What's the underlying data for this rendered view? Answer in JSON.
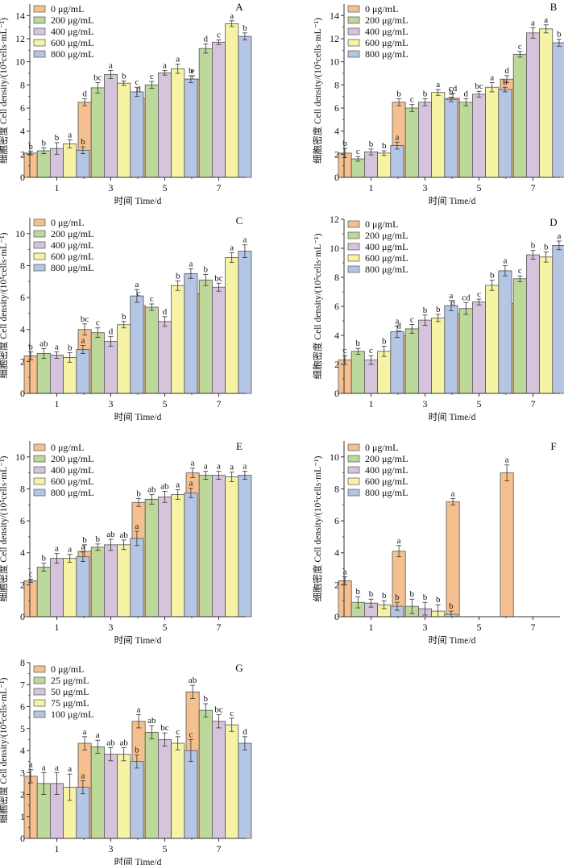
{
  "chart_data": [
    {
      "type": "bar",
      "panel": "A",
      "categories": [
        "1",
        "3",
        "5",
        "7"
      ],
      "xlabel": "时间 Time/d",
      "ylabel": "细胞密度 Cell density/(10⁵cells·mL⁻¹)",
      "ylim": [
        0,
        15
      ],
      "yticks": [
        0,
        2,
        4,
        6,
        8,
        10,
        12,
        14
      ],
      "legend_position": "top-left",
      "series": [
        {
          "name": "0 μg/mL",
          "color": "#f5c08f",
          "values": [
            2.1,
            6.5,
            6.8,
            8.5
          ],
          "errors": [
            0.15,
            0.3,
            0.4,
            0.3
          ],
          "letters": [
            "b",
            "d",
            "d",
            "e"
          ]
        },
        {
          "name": "200 μg/mL",
          "color": "#bcd89a",
          "values": [
            2.3,
            7.75,
            8.0,
            11.15
          ],
          "errors": [
            0.25,
            0.45,
            0.3,
            0.4
          ],
          "letters": [
            "b",
            "bc",
            "c",
            "d"
          ]
        },
        {
          "name": "400 μg/mL",
          "color": "#d6c4dc",
          "values": [
            2.5,
            8.9,
            9.05,
            11.7
          ],
          "errors": [
            0.5,
            0.35,
            0.2,
            0.2
          ],
          "letters": [
            "b",
            "a",
            "a",
            "c"
          ]
        },
        {
          "name": "600 μg/mL",
          "color": "#f7f3a5",
          "values": [
            2.9,
            8.15,
            9.4,
            13.3
          ],
          "errors": [
            0.35,
            0.2,
            0.4,
            0.25
          ],
          "letters": [
            "a",
            "b",
            "a",
            "a"
          ]
        },
        {
          "name": "800 μg/mL",
          "color": "#b4c6e4",
          "values": [
            2.35,
            7.4,
            8.5,
            12.2
          ],
          "errors": [
            0.3,
            0.4,
            0.3,
            0.3
          ],
          "letters": [
            "b",
            "c",
            "b",
            "b"
          ]
        }
      ]
    },
    {
      "type": "bar",
      "panel": "B",
      "categories": [
        "1",
        "3",
        "5",
        "7"
      ],
      "xlabel": "时间 Time/d",
      "ylabel": "细胞密度 Cell density/(10⁵cells·mL⁻¹)",
      "ylim": [
        0,
        15
      ],
      "yticks": [
        0,
        2,
        4,
        6,
        8,
        10,
        12,
        14
      ],
      "legend_position": "top-left",
      "series": [
        {
          "name": "0 μg/mL",
          "color": "#f5c08f",
          "values": [
            2.1,
            6.5,
            6.85,
            8.5
          ],
          "errors": [
            0.4,
            0.3,
            0.4,
            0.3
          ],
          "letters": [
            "b",
            "b",
            "cd",
            "d"
          ]
        },
        {
          "name": "200 μg/mL",
          "color": "#bcd89a",
          "values": [
            1.6,
            6.0,
            6.5,
            10.65
          ],
          "errors": [
            0.2,
            0.3,
            0.3,
            0.25
          ],
          "letters": [
            "c",
            "c",
            "d",
            "c"
          ]
        },
        {
          "name": "400 μg/mL",
          "color": "#d6c4dc",
          "values": [
            2.2,
            6.5,
            7.2,
            12.5
          ],
          "errors": [
            0.25,
            0.3,
            0.25,
            0.45
          ],
          "letters": [
            "b",
            "b",
            "bc",
            "a"
          ]
        },
        {
          "name": "600 μg/mL",
          "color": "#f7f3a5",
          "values": [
            2.1,
            7.35,
            7.8,
            12.85
          ],
          "errors": [
            0.2,
            0.25,
            0.4,
            0.35
          ],
          "letters": [
            "b",
            "a",
            "a",
            "a"
          ]
        },
        {
          "name": "800 μg/mL",
          "color": "#b4c6e4",
          "values": [
            2.75,
            6.75,
            7.6,
            11.65
          ],
          "errors": [
            0.3,
            0.2,
            0.2,
            0.3
          ],
          "letters": [
            "a",
            "b",
            "b",
            "b"
          ]
        }
      ]
    },
    {
      "type": "bar",
      "panel": "C",
      "categories": [
        "1",
        "3",
        "5",
        "7"
      ],
      "xlabel": "时间 Time/d",
      "ylabel": "细胞密度 Cell density/(10⁵cells·mL⁻¹)",
      "ylim": [
        0,
        11
      ],
      "yticks": [
        0,
        2,
        4,
        6,
        8,
        10
      ],
      "legend_position": "top-left",
      "series": [
        {
          "name": "0 μg/mL",
          "color": "#f5c08f",
          "values": [
            2.35,
            4.0,
            5.5,
            6.25
          ],
          "errors": [
            0.25,
            0.35,
            0.45,
            0.2
          ],
          "letters": [
            "b",
            "bc",
            "c",
            "c"
          ]
        },
        {
          "name": "200 μg/mL",
          "color": "#bcd89a",
          "values": [
            2.5,
            3.8,
            5.4,
            7.1
          ],
          "errors": [
            0.3,
            0.3,
            0.2,
            0.35
          ],
          "letters": [
            "ab",
            "c",
            "c",
            "b"
          ]
        },
        {
          "name": "400 μg/mL",
          "color": "#d6c4dc",
          "values": [
            2.4,
            3.25,
            4.5,
            6.65
          ],
          "errors": [
            0.2,
            0.3,
            0.3,
            0.25
          ],
          "letters": [
            "a",
            "d",
            "d",
            "bc"
          ]
        },
        {
          "name": "600 μg/mL",
          "color": "#f7f3a5",
          "values": [
            2.25,
            4.3,
            6.75,
            8.5
          ],
          "errors": [
            0.3,
            0.2,
            0.3,
            0.3
          ],
          "letters": [
            "b",
            "b",
            "b",
            "a"
          ]
        },
        {
          "name": "800 μg/mL",
          "color": "#b4c6e4",
          "values": [
            2.75,
            6.1,
            7.5,
            8.9
          ],
          "errors": [
            0.25,
            0.4,
            0.3,
            0.4
          ],
          "letters": [
            "a",
            "a",
            "a",
            "a"
          ]
        }
      ]
    },
    {
      "type": "bar",
      "panel": "D",
      "categories": [
        "1",
        "3",
        "5",
        "7"
      ],
      "xlabel": "时间 Time/d",
      "ylabel": "细胞密度 Cell density/(10⁵cells·mL⁻¹)",
      "ylim": [
        0,
        12
      ],
      "yticks": [
        0,
        2,
        4,
        6,
        8,
        10,
        12
      ],
      "legend_position": "top-left",
      "series": [
        {
          "name": "0 μg/mL",
          "color": "#f5c08f",
          "values": [
            2.3,
            4.0,
            5.5,
            6.2
          ],
          "errors": [
            0.3,
            0.3,
            0.4,
            0.3
          ],
          "letters": [
            "c",
            "d",
            "d",
            "d"
          ]
        },
        {
          "name": "200 μg/mL",
          "color": "#bcd89a",
          "values": [
            2.9,
            4.45,
            5.85,
            7.9
          ],
          "errors": [
            0.2,
            0.3,
            0.4,
            0.2
          ],
          "letters": [
            "b",
            "c",
            "cd",
            "c"
          ]
        },
        {
          "name": "400 μg/mL",
          "color": "#d6c4dc",
          "values": [
            2.3,
            5.05,
            6.3,
            9.55
          ],
          "errors": [
            0.3,
            0.35,
            0.2,
            0.3
          ],
          "letters": [
            "c",
            "b",
            "c",
            "b"
          ]
        },
        {
          "name": "600 μg/mL",
          "color": "#f7f3a5",
          "values": [
            2.9,
            5.2,
            7.45,
            9.4
          ],
          "errors": [
            0.35,
            0.25,
            0.35,
            0.35
          ],
          "letters": [
            "b",
            "b",
            "b",
            "b"
          ]
        },
        {
          "name": "800 μg/mL",
          "color": "#b4c6e4",
          "values": [
            4.25,
            6.05,
            8.45,
            10.2
          ],
          "errors": [
            0.4,
            0.35,
            0.35,
            0.3
          ],
          "letters": [
            "a",
            "a",
            "a",
            "a"
          ]
        }
      ]
    },
    {
      "type": "bar",
      "panel": "E",
      "categories": [
        "1",
        "3",
        "5",
        "7"
      ],
      "xlabel": "时间 Time/d",
      "ylabel": "细胞密度 Cell density/(10⁵cells·mL⁻¹)",
      "ylim": [
        0,
        11
      ],
      "yticks": [
        0,
        2,
        4,
        6,
        8,
        10
      ],
      "legend_position": "top-left",
      "series": [
        {
          "name": "0 μg/mL",
          "color": "#f5c08f",
          "values": [
            2.25,
            4.1,
            7.15,
            9.0
          ],
          "errors": [
            0.1,
            0.4,
            0.25,
            0.3
          ],
          "letters": [
            "c",
            "b",
            "b",
            "a"
          ]
        },
        {
          "name": "200 μg/mL",
          "color": "#bcd89a",
          "values": [
            3.1,
            4.35,
            7.35,
            8.85
          ],
          "errors": [
            0.25,
            0.2,
            0.3,
            0.25
          ],
          "letters": [
            "b",
            "b",
            "ab",
            "a"
          ]
        },
        {
          "name": "400 μg/mL",
          "color": "#d6c4dc",
          "values": [
            3.65,
            4.5,
            7.5,
            8.85
          ],
          "errors": [
            0.3,
            0.35,
            0.35,
            0.25
          ],
          "letters": [
            "a",
            "ab",
            "ab",
            "a"
          ]
        },
        {
          "name": "600 μg/mL",
          "color": "#f7f3a5",
          "values": [
            3.65,
            4.5,
            7.65,
            8.75
          ],
          "errors": [
            0.25,
            0.3,
            0.3,
            0.3
          ],
          "letters": [
            "a",
            "ab",
            "a",
            "a"
          ]
        },
        {
          "name": "800 μg/mL",
          "color": "#b4c6e4",
          "values": [
            3.75,
            4.9,
            7.75,
            8.85
          ],
          "errors": [
            0.3,
            0.45,
            0.3,
            0.25
          ],
          "letters": [
            "a",
            "a",
            "a",
            "a"
          ]
        }
      ]
    },
    {
      "type": "bar",
      "panel": "F",
      "categories": [
        "1",
        "3",
        "5",
        "7"
      ],
      "xlabel": "时间 Time/d",
      "ylabel": "细胞密度 Cell density/(10⁵cells·mL⁻¹)",
      "ylim": [
        0,
        11
      ],
      "yticks": [
        0,
        2,
        4,
        6,
        8,
        10
      ],
      "legend_position": "top-left",
      "series": [
        {
          "name": "0 μg/mL",
          "color": "#f5c08f",
          "values": [
            2.25,
            4.1,
            7.2,
            9.0
          ],
          "errors": [
            0.25,
            0.35,
            0.2,
            0.5
          ],
          "letters": [
            "a",
            "a",
            "a",
            "a"
          ]
        },
        {
          "name": "200 μg/mL",
          "color": "#bcd89a",
          "values": [
            0.9,
            0.65,
            0,
            0
          ],
          "errors": [
            0.35,
            0.45,
            0,
            0
          ],
          "letters": [
            "b",
            "b",
            "",
            ""
          ]
        },
        {
          "name": "400 μg/mL",
          "color": "#d6c4dc",
          "values": [
            0.85,
            0.5,
            0,
            0
          ],
          "errors": [
            0.25,
            0.4,
            0,
            0
          ],
          "letters": [
            "b",
            "b",
            "",
            ""
          ]
        },
        {
          "name": "600 μg/mL",
          "color": "#f7f3a5",
          "values": [
            0.75,
            0.35,
            0,
            0
          ],
          "errors": [
            0.25,
            0.4,
            0,
            0
          ],
          "letters": [
            "b",
            "b",
            "",
            ""
          ]
        },
        {
          "name": "800 μg/mL",
          "color": "#b4c6e4",
          "values": [
            0.65,
            0.15,
            0,
            0
          ],
          "errors": [
            0.25,
            0.2,
            0,
            0
          ],
          "letters": [
            "b",
            "b",
            "",
            ""
          ]
        }
      ]
    },
    {
      "type": "bar",
      "panel": "G",
      "categories": [
        "1",
        "3",
        "5",
        "7"
      ],
      "xlabel": "时间 Time/d",
      "ylabel": "细胞密度 Cell density/(10⁵cells·mL⁻¹)",
      "ylim": [
        0,
        8
      ],
      "yticks": [
        0,
        1,
        2,
        3,
        4,
        5,
        6,
        7,
        8
      ],
      "legend_position": "top-left",
      "series": [
        {
          "name": "0 μg/mL",
          "color": "#f5c08f",
          "values": [
            2.83,
            4.33,
            5.33,
            6.67
          ],
          "errors": [
            0.3,
            0.3,
            0.3,
            0.3
          ],
          "letters": [
            "a",
            "a",
            "a",
            "ab"
          ]
        },
        {
          "name": "25 μg/mL",
          "color": "#bcd89a",
          "values": [
            2.5,
            4.17,
            4.83,
            5.83
          ],
          "errors": [
            0.5,
            0.3,
            0.3,
            0.3
          ],
          "letters": [
            "a",
            "a",
            "ab",
            "b"
          ]
        },
        {
          "name": "50 μg/mL",
          "color": "#d6c4dc",
          "values": [
            2.5,
            3.83,
            4.5,
            5.33
          ],
          "errors": [
            0.5,
            0.3,
            0.3,
            0.3
          ],
          "letters": [
            "a",
            "ab",
            "bc",
            "bc"
          ]
        },
        {
          "name": "75 μg/mL",
          "color": "#f7f3a5",
          "values": [
            2.33,
            3.83,
            4.33,
            5.17
          ],
          "errors": [
            0.6,
            0.3,
            0.3,
            0.3
          ],
          "letters": [
            "a",
            "ab",
            "c",
            "c"
          ]
        },
        {
          "name": "100 μg/mL",
          "color": "#b4c6e4",
          "values": [
            2.33,
            3.5,
            4.0,
            4.33
          ],
          "errors": [
            0.3,
            0.3,
            0.5,
            0.3
          ],
          "letters": [
            "a",
            "b",
            "c",
            "d"
          ]
        }
      ]
    }
  ]
}
